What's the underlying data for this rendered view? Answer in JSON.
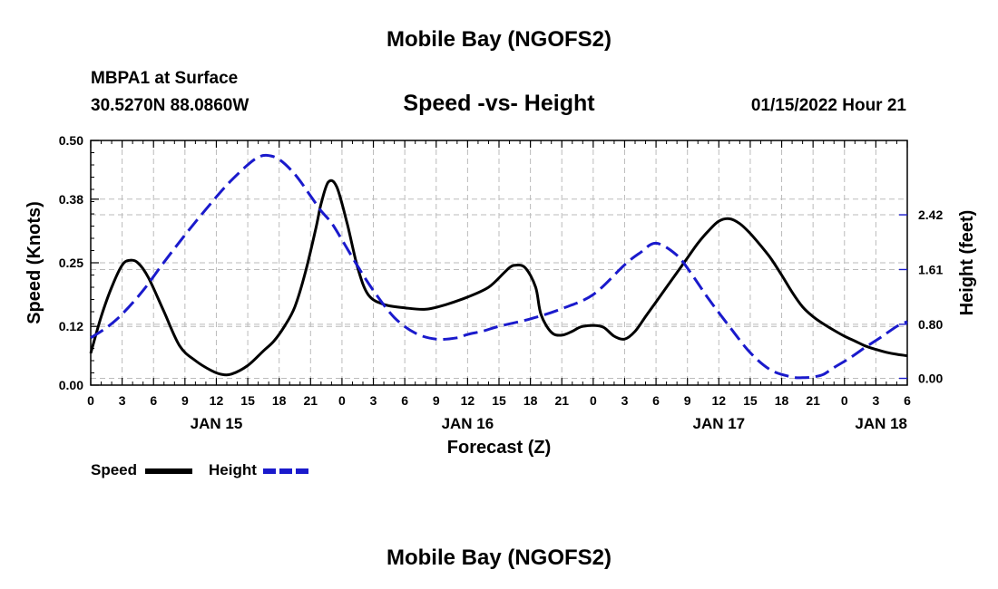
{
  "page": {
    "title": "Mobile Bay (NGOFS2)",
    "station": "MBPA1 at Surface",
    "location": "30.5270N  88.0860W",
    "subtitle": "Speed -vs- Height",
    "timestamp": "01/15/2022 Hour 21",
    "footer_title": "Mobile Bay (NGOFS2)"
  },
  "colors": {
    "speed": "#000000",
    "height": "#1a1acc",
    "grid": "#bbbbbb"
  },
  "chart_data": {
    "type": "line",
    "xlabel": "Forecast (Z)",
    "ylabel_left": "Speed (Knots)",
    "ylabel_right": "Height (feet)",
    "x_unit": "hours",
    "x_range": [
      0,
      78
    ],
    "x_tick_step": 3,
    "x_tick_labels": [
      "0",
      "3",
      "6",
      "9",
      "12",
      "15",
      "18",
      "21",
      "0",
      "3",
      "6",
      "9",
      "12",
      "15",
      "18",
      "21",
      "0",
      "3",
      "6",
      "9",
      "12",
      "15",
      "18",
      "21",
      "0",
      "3",
      "6"
    ],
    "date_labels": [
      {
        "hour": 12,
        "label": "JAN 15"
      },
      {
        "hour": 36,
        "label": "JAN 16"
      },
      {
        "hour": 60,
        "label": "JAN 17"
      },
      {
        "hour": 78,
        "label": "JAN 18"
      }
    ],
    "y_left": {
      "range": [
        0,
        0.5
      ],
      "ticks": [
        0,
        0.12,
        0.25,
        0.38,
        0.5
      ],
      "tick_labels": [
        "0.00",
        "0.12",
        "0.25",
        "0.38",
        "0.50"
      ]
    },
    "y_right": {
      "range": [
        -0.1,
        3.52
      ],
      "ticks": [
        0,
        0.8,
        1.61,
        2.42
      ],
      "tick_labels": [
        "0.00",
        "0.80",
        "1.61",
        "2.42"
      ]
    },
    "grid": true,
    "legend": [
      {
        "name": "Speed",
        "series": "speed"
      },
      {
        "name": "Height",
        "series": "height"
      }
    ],
    "series": [
      {
        "name": "Speed",
        "axis": "left",
        "style": "solid",
        "x": [
          0,
          1,
          2,
          3,
          3.7,
          4.5,
          5.5,
          7,
          8.5,
          10,
          11.5,
          12.5,
          13.5,
          15,
          16.5,
          17.5,
          18.5,
          19.5,
          20.5,
          21.5,
          22,
          22.7,
          23.5,
          24.5,
          25.5,
          26.5,
          28,
          30,
          32,
          34,
          36,
          38,
          39.5,
          40,
          40.5,
          41.5,
          42.5,
          43,
          44,
          45,
          46,
          46.5,
          47,
          48,
          49,
          50,
          51,
          52,
          53,
          54,
          55,
          56,
          57,
          58,
          59,
          60,
          61,
          62,
          63,
          64,
          65,
          66,
          67,
          68,
          69,
          70,
          71,
          72,
          73,
          74,
          75,
          76,
          77,
          78
        ],
        "values": [
          0.065,
          0.14,
          0.2,
          0.245,
          0.255,
          0.25,
          0.22,
          0.15,
          0.08,
          0.05,
          0.03,
          0.022,
          0.023,
          0.04,
          0.07,
          0.09,
          0.12,
          0.16,
          0.23,
          0.32,
          0.37,
          0.415,
          0.405,
          0.33,
          0.24,
          0.185,
          0.165,
          0.158,
          0.155,
          0.165,
          0.18,
          0.2,
          0.23,
          0.24,
          0.245,
          0.24,
          0.2,
          0.145,
          0.108,
          0.102,
          0.11,
          0.116,
          0.12,
          0.122,
          0.118,
          0.1,
          0.094,
          0.11,
          0.14,
          0.17,
          0.2,
          0.23,
          0.26,
          0.29,
          0.315,
          0.335,
          0.34,
          0.33,
          0.31,
          0.285,
          0.258,
          0.225,
          0.19,
          0.16,
          0.14,
          0.125,
          0.112,
          0.1,
          0.09,
          0.08,
          0.073,
          0.067,
          0.063,
          0.06
        ]
      },
      {
        "name": "Height",
        "axis": "right",
        "style": "dashed",
        "x": [
          0,
          1.5,
          3,
          5,
          7,
          9,
          11,
          13,
          15,
          16,
          16.8,
          18,
          19.5,
          21,
          22,
          23,
          24,
          25.5,
          27,
          29,
          31,
          33,
          35,
          36,
          37.5,
          39,
          42,
          45,
          48,
          51,
          52.5,
          54,
          56,
          57.5,
          59,
          61,
          63,
          65,
          67,
          68,
          69,
          70,
          71,
          72.5,
          74,
          75.5,
          77,
          78
        ],
        "values": [
          0.6,
          0.75,
          0.95,
          1.3,
          1.72,
          2.12,
          2.5,
          2.86,
          3.16,
          3.27,
          3.3,
          3.24,
          3.02,
          2.7,
          2.48,
          2.3,
          2.05,
          1.66,
          1.3,
          0.9,
          0.67,
          0.58,
          0.6,
          0.65,
          0.7,
          0.77,
          0.88,
          1.03,
          1.24,
          1.68,
          1.86,
          2.0,
          1.82,
          1.52,
          1.18,
          0.77,
          0.38,
          0.12,
          0.02,
          0.01,
          0.02,
          0.06,
          0.16,
          0.3,
          0.46,
          0.61,
          0.77,
          0.84
        ]
      }
    ]
  }
}
